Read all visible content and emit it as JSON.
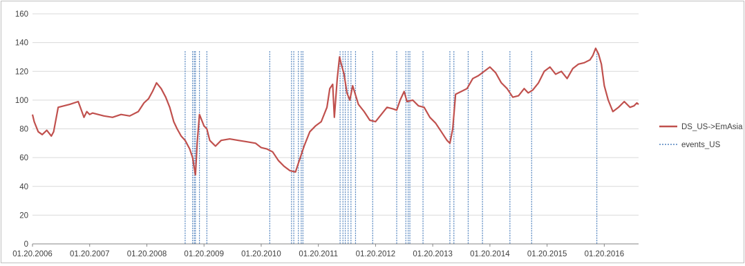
{
  "chart_data": {
    "type": "line",
    "title": "",
    "xlabel": "",
    "ylabel": "",
    "ylim": [
      0,
      160
    ],
    "yticks": [
      0,
      20,
      40,
      60,
      80,
      100,
      120,
      140,
      160
    ],
    "xlim": [
      2006.05,
      2016.65
    ],
    "xtick_labels": [
      "01.20.2006",
      "01.20.2007",
      "01.20.2008",
      "01.20.2009",
      "01.20.2010",
      "01.20.2011",
      "01.20.2012",
      "01.20.2013",
      "01.20.2014",
      "01.20.2015",
      "01.20.2016"
    ],
    "grid": true,
    "legend_position": "right",
    "series": [
      {
        "name": "DS_US->EmAsia",
        "color": "#c0504d",
        "style": "solid",
        "x": [
          2006.05,
          2006.08,
          2006.15,
          2006.22,
          2006.3,
          2006.38,
          2006.42,
          2006.5,
          2006.6,
          2006.7,
          2006.85,
          2006.95,
          2007.0,
          2007.05,
          2007.1,
          2007.2,
          2007.3,
          2007.45,
          2007.6,
          2007.75,
          2007.9,
          2008.0,
          2008.08,
          2008.15,
          2008.22,
          2008.3,
          2008.38,
          2008.45,
          2008.52,
          2008.58,
          2008.65,
          2008.72,
          2008.8,
          2008.85,
          2008.87,
          2008.9,
          2008.93,
          2008.97,
          2009.05,
          2009.1,
          2009.15,
          2009.2,
          2009.25,
          2009.35,
          2009.5,
          2009.65,
          2009.8,
          2009.95,
          2010.05,
          2010.15,
          2010.25,
          2010.35,
          2010.45,
          2010.55,
          2010.65,
          2010.7,
          2010.75,
          2010.8,
          2010.9,
          2011.0,
          2011.1,
          2011.2,
          2011.25,
          2011.3,
          2011.33,
          2011.38,
          2011.42,
          2011.45,
          2011.5,
          2011.55,
          2011.6,
          2011.65,
          2011.75,
          2011.85,
          2011.95,
          2012.05,
          2012.15,
          2012.25,
          2012.35,
          2012.42,
          2012.48,
          2012.55,
          2012.6,
          2012.7,
          2012.8,
          2012.9,
          2013.0,
          2013.1,
          2013.2,
          2013.3,
          2013.35,
          2013.4,
          2013.45,
          2013.55,
          2013.65,
          2013.75,
          2013.85,
          2013.95,
          2014.05,
          2014.15,
          2014.25,
          2014.35,
          2014.45,
          2014.55,
          2014.65,
          2014.72,
          2014.8,
          2014.9,
          2015.0,
          2015.1,
          2015.2,
          2015.3,
          2015.4,
          2015.5,
          2015.6,
          2015.7,
          2015.8,
          2015.85,
          2015.9,
          2015.95,
          2016.0,
          2016.05,
          2016.12,
          2016.2,
          2016.3,
          2016.4,
          2016.5,
          2016.57,
          2016.62,
          2016.65
        ],
        "y": [
          90,
          85,
          78,
          76,
          79,
          75,
          78,
          95,
          96,
          97,
          99,
          88,
          92,
          90,
          91,
          90,
          89,
          88,
          90,
          89,
          92,
          98,
          101,
          106,
          112,
          108,
          102,
          95,
          85,
          80,
          75,
          72,
          66,
          60,
          55,
          48,
          70,
          90,
          82,
          80,
          72,
          70,
          68,
          72,
          73,
          72,
          71,
          70,
          67,
          66,
          64,
          58,
          54,
          51,
          50,
          56,
          62,
          68,
          78,
          82,
          85,
          95,
          108,
          111,
          88,
          115,
          130,
          125,
          118,
          105,
          100,
          110,
          97,
          92,
          86,
          85,
          90,
          95,
          94,
          93,
          100,
          106,
          99,
          100,
          96,
          95,
          88,
          84,
          78,
          72,
          70,
          80,
          104,
          106,
          108,
          115,
          117,
          120,
          123,
          119,
          112,
          108,
          102,
          103,
          108,
          105,
          107,
          112,
          120,
          123,
          118,
          120,
          115,
          122,
          125,
          126,
          128,
          131,
          136,
          132,
          125,
          110,
          100,
          92,
          95,
          99,
          95,
          96,
          98,
          97
        ]
      },
      {
        "name": "events_US",
        "color": "#4f81bd",
        "style": "dotted",
        "value": 134,
        "x": [
          2008.72,
          2008.85,
          2008.88,
          2008.9,
          2008.97,
          2009.1,
          2010.2,
          2010.58,
          2010.62,
          2010.7,
          2010.75,
          2010.78,
          2011.43,
          2011.48,
          2011.52,
          2011.57,
          2011.62,
          2011.7,
          2012.0,
          2012.42,
          2012.58,
          2012.62,
          2012.65,
          2012.88,
          2013.35,
          2013.42,
          2013.67,
          2013.92,
          2014.4,
          2014.78,
          2015.92
        ]
      }
    ]
  }
}
